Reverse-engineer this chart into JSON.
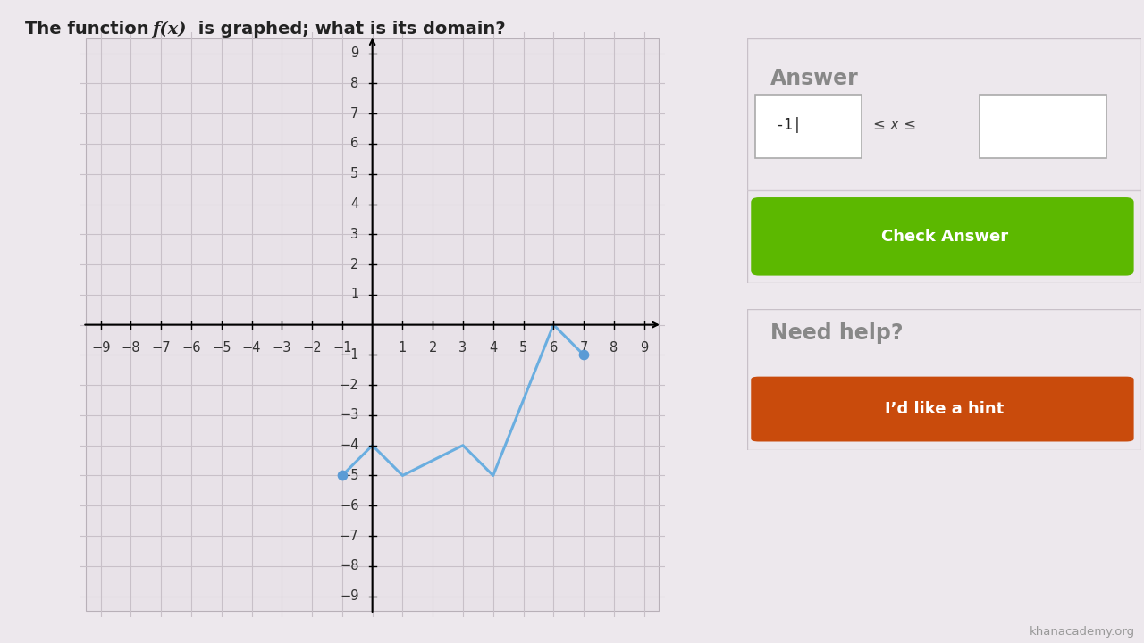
{
  "bg_color": "#ede8ed",
  "graph_area_bg": "#ede8ed",
  "graph_plot_bg": "#e8e2e8",
  "question_text_plain": "The function ",
  "question_fx": "f(x)",
  "question_text_rest": " is graphed; what is its domain?",
  "curve_x": [
    -1,
    0,
    1,
    3,
    4,
    6,
    7
  ],
  "curve_y": [
    -5,
    -4,
    -5,
    -4,
    -5,
    0,
    -1
  ],
  "curve_color": "#6aaee0",
  "curve_linewidth": 2.2,
  "dot_color": "#5b9bd5",
  "dot_size": 55,
  "axis_min": -9,
  "axis_max": 9,
  "grid_color": "#c8c0c8",
  "tick_fontsize": 10.5,
  "panel_bg": "#ede8ed",
  "panel_border": "#d8d0d8",
  "answer_title": "Answer",
  "answer_title_color": "#888888",
  "leq_text": "≤ x ≤",
  "input_text": "-1",
  "check_button_bg": "#5cb800",
  "check_button_text": "Check Answer",
  "check_button_text_color": "#ffffff",
  "need_help_title": "Need help?",
  "need_help_color": "#888888",
  "hint_button_bg": "#c94b0c",
  "hint_button_text": "I’d like a hint",
  "hint_button_text_color": "#ffffff",
  "watermark": "khanacademy.org"
}
